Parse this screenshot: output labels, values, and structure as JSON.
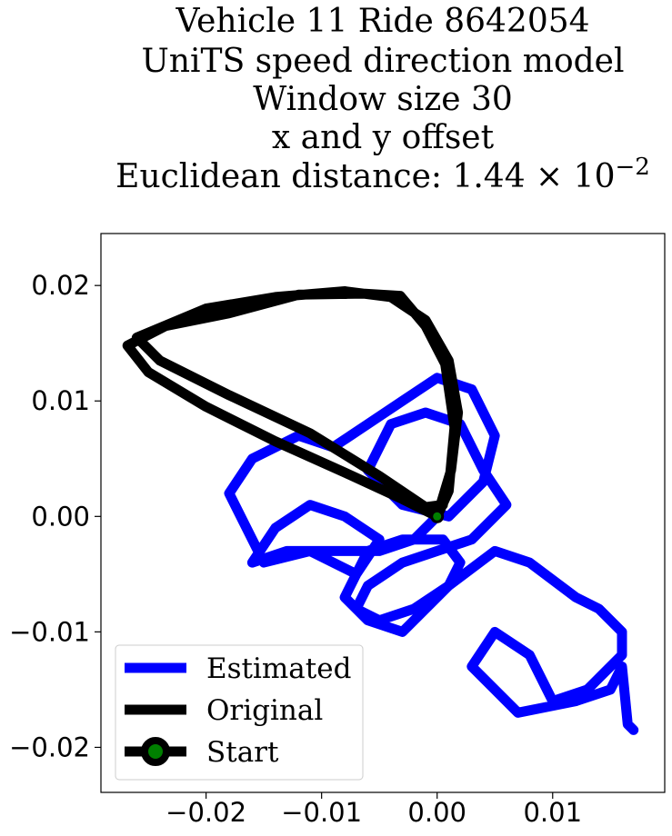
{
  "chart_data": {
    "type": "line",
    "title": [
      "Vehicle 11 Ride 8642054",
      "UniTS speed direction model",
      "Window size 30",
      "x and y offset",
      {
        "text": "Euclidean distance: 1.44 × 10",
        "superscript": "−2"
      }
    ],
    "xlim": [
      -0.0291,
      0.0197
    ],
    "ylim": [
      -0.0239,
      0.0245
    ],
    "xticks": [
      {
        "value": -0.02,
        "label": "−0.02"
      },
      {
        "value": -0.01,
        "label": "−0.01"
      },
      {
        "value": 0,
        "label": "0.00"
      },
      0.01
    ],
    "yticks": [
      {
        "value": -0.02,
        "label": "−0.02"
      },
      {
        "value": -0.01,
        "label": "−0.01"
      },
      {
        "value": 0,
        "label": "0.00"
      },
      0.01,
      0.02
    ],
    "grid": false,
    "legend": "lower left",
    "series": [
      {
        "name": "Estimated",
        "color": "#0000ff",
        "x": [
          0,
          -0.002,
          -0.005,
          -0.009,
          -0.013,
          -0.016,
          -0.014,
          -0.011,
          -0.008,
          -0.005,
          -0.007,
          -0.011,
          -0.015,
          -0.018,
          -0.016,
          -0.012,
          -0.009,
          -0.006,
          -0.003,
          0.0,
          0.003,
          0.005,
          0.004,
          0.001,
          -0.003,
          -0.006,
          -0.004,
          -0.001,
          0.002,
          0.004,
          0.006,
          0.003,
          0.0,
          -0.003,
          -0.006,
          -0.007,
          -0.005,
          -0.002,
          0.001,
          0.002,
          0.0005,
          -0.003,
          -0.006,
          -0.008,
          -0.006,
          -0.003,
          0.001,
          0.005,
          0.008,
          0.012,
          0.014,
          0.016,
          0.016,
          0.013,
          0.01,
          0.008,
          0.005,
          0.003,
          0.007,
          0.012,
          0.015,
          0.016,
          0.0165,
          0.017
        ],
        "y": [
          0,
          -0.002,
          -0.003,
          -0.003,
          -0.003,
          -0.004,
          -0.001,
          0.001,
          0.0,
          -0.002,
          -0.005,
          -0.003,
          -0.004,
          0.002,
          0.005,
          0.007,
          0.006,
          0.008,
          0.01,
          0.012,
          0.011,
          0.007,
          0.003,
          0.0,
          0.001,
          0.004,
          0.008,
          0.009,
          0.008,
          0.004,
          0.001,
          -0.002,
          -0.003,
          -0.004,
          -0.006,
          -0.008,
          -0.009,
          -0.008,
          -0.006,
          -0.004,
          -0.002,
          -0.002,
          -0.003,
          -0.007,
          -0.009,
          -0.01,
          -0.006,
          -0.003,
          -0.004,
          -0.007,
          -0.008,
          -0.01,
          -0.012,
          -0.015,
          -0.016,
          -0.012,
          -0.01,
          -0.013,
          -0.017,
          -0.016,
          -0.015,
          -0.013,
          -0.018,
          -0.0185
        ]
      },
      {
        "name": "Original",
        "color": "#000000",
        "x": [
          0,
          0.001,
          0.0015,
          0.0007,
          -0.001,
          -0.0032,
          -0.0064,
          -0.012,
          -0.018,
          -0.0235,
          -0.0268,
          -0.025,
          -0.02,
          -0.014,
          -0.008,
          -0.003,
          0,
          0.0012,
          0.0018,
          0.001,
          -0.001,
          -0.004,
          -0.008,
          -0.014,
          -0.02,
          -0.026,
          -0.024,
          -0.018,
          -0.011,
          -0.005,
          -0.001,
          0.0005
        ],
        "y": [
          0,
          0.0022,
          0.0077,
          0.0132,
          0.0165,
          0.0191,
          0.0193,
          0.0192,
          0.0176,
          0.0165,
          0.0148,
          0.0125,
          0.0095,
          0.0065,
          0.0038,
          0.0015,
          0,
          0.004,
          0.009,
          0.0135,
          0.017,
          0.019,
          0.0195,
          0.019,
          0.018,
          0.0155,
          0.0135,
          0.0105,
          0.0072,
          0.0035,
          0.0008,
          0.001
        ]
      },
      {
        "name": "Start",
        "color": "#000000",
        "marker_color": "green",
        "x": [
          0
        ],
        "y": [
          0
        ]
      }
    ]
  }
}
